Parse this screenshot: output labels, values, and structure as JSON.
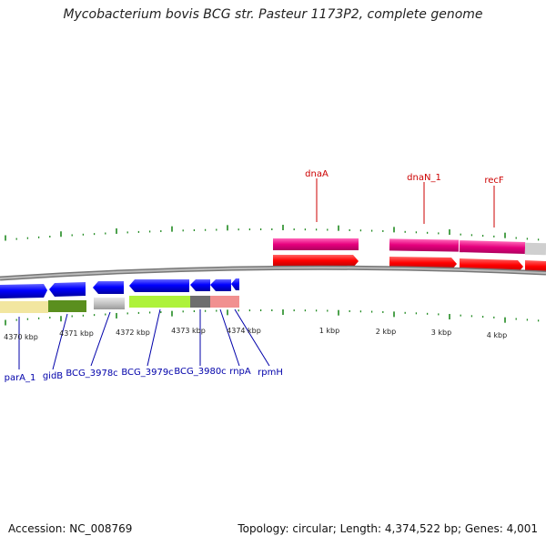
{
  "title": "Mycobacterium bovis BCG str. Pasteur 1173P2, complete genome",
  "accession_label": "Accession: NC_008769",
  "summary_label": "Topology: circular; Length: 4,374,522 bp; Genes: 4,001",
  "scale_labels": [
    "4370 kbp",
    "4371 kbp",
    "4372 kbp",
    "4373 kbp",
    "4374 kbp",
    "1 kbp",
    "2 kbp",
    "3 kbp",
    "4 kbp"
  ],
  "genes_above": [
    "dnaA",
    "dnaN_1",
    "recF"
  ],
  "genes_below": [
    "parA_1",
    "gidB",
    "BCG_3978c",
    "BCG_3979c",
    "BCG_3980c",
    "rnpA",
    "rpmH"
  ],
  "colors": {
    "forward_gene": "#ff0000",
    "reverse_gene": "#0000ff",
    "forward_cds_band": "#e0007f",
    "gene_label_above": "#cc0000",
    "gene_label_below": "#0000aa",
    "tick": "#228b22",
    "backbone": "#999999"
  }
}
